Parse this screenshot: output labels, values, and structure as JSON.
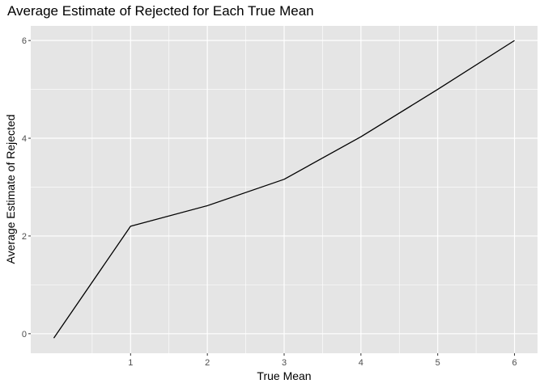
{
  "chart_data": {
    "type": "line",
    "title": "Average Estimate of Rejected for Each True Mean",
    "xlabel": "True Mean",
    "ylabel": "Average Estimate of Rejected",
    "x_ticks": [
      1,
      2,
      3,
      4,
      5,
      6
    ],
    "y_ticks": [
      0,
      2,
      4,
      6
    ],
    "xlim": [
      -0.3,
      6.3
    ],
    "ylim": [
      -0.4,
      6.3
    ],
    "grid": true,
    "background": "#e5e5e5",
    "grid_color": "#ffffff",
    "line_color": "#000000",
    "series": [
      {
        "x": [
          0,
          1,
          2,
          3,
          4,
          5,
          6
        ],
        "y": [
          -0.09,
          2.2,
          2.62,
          3.16,
          4.03,
          5.0,
          6.0
        ]
      }
    ]
  }
}
